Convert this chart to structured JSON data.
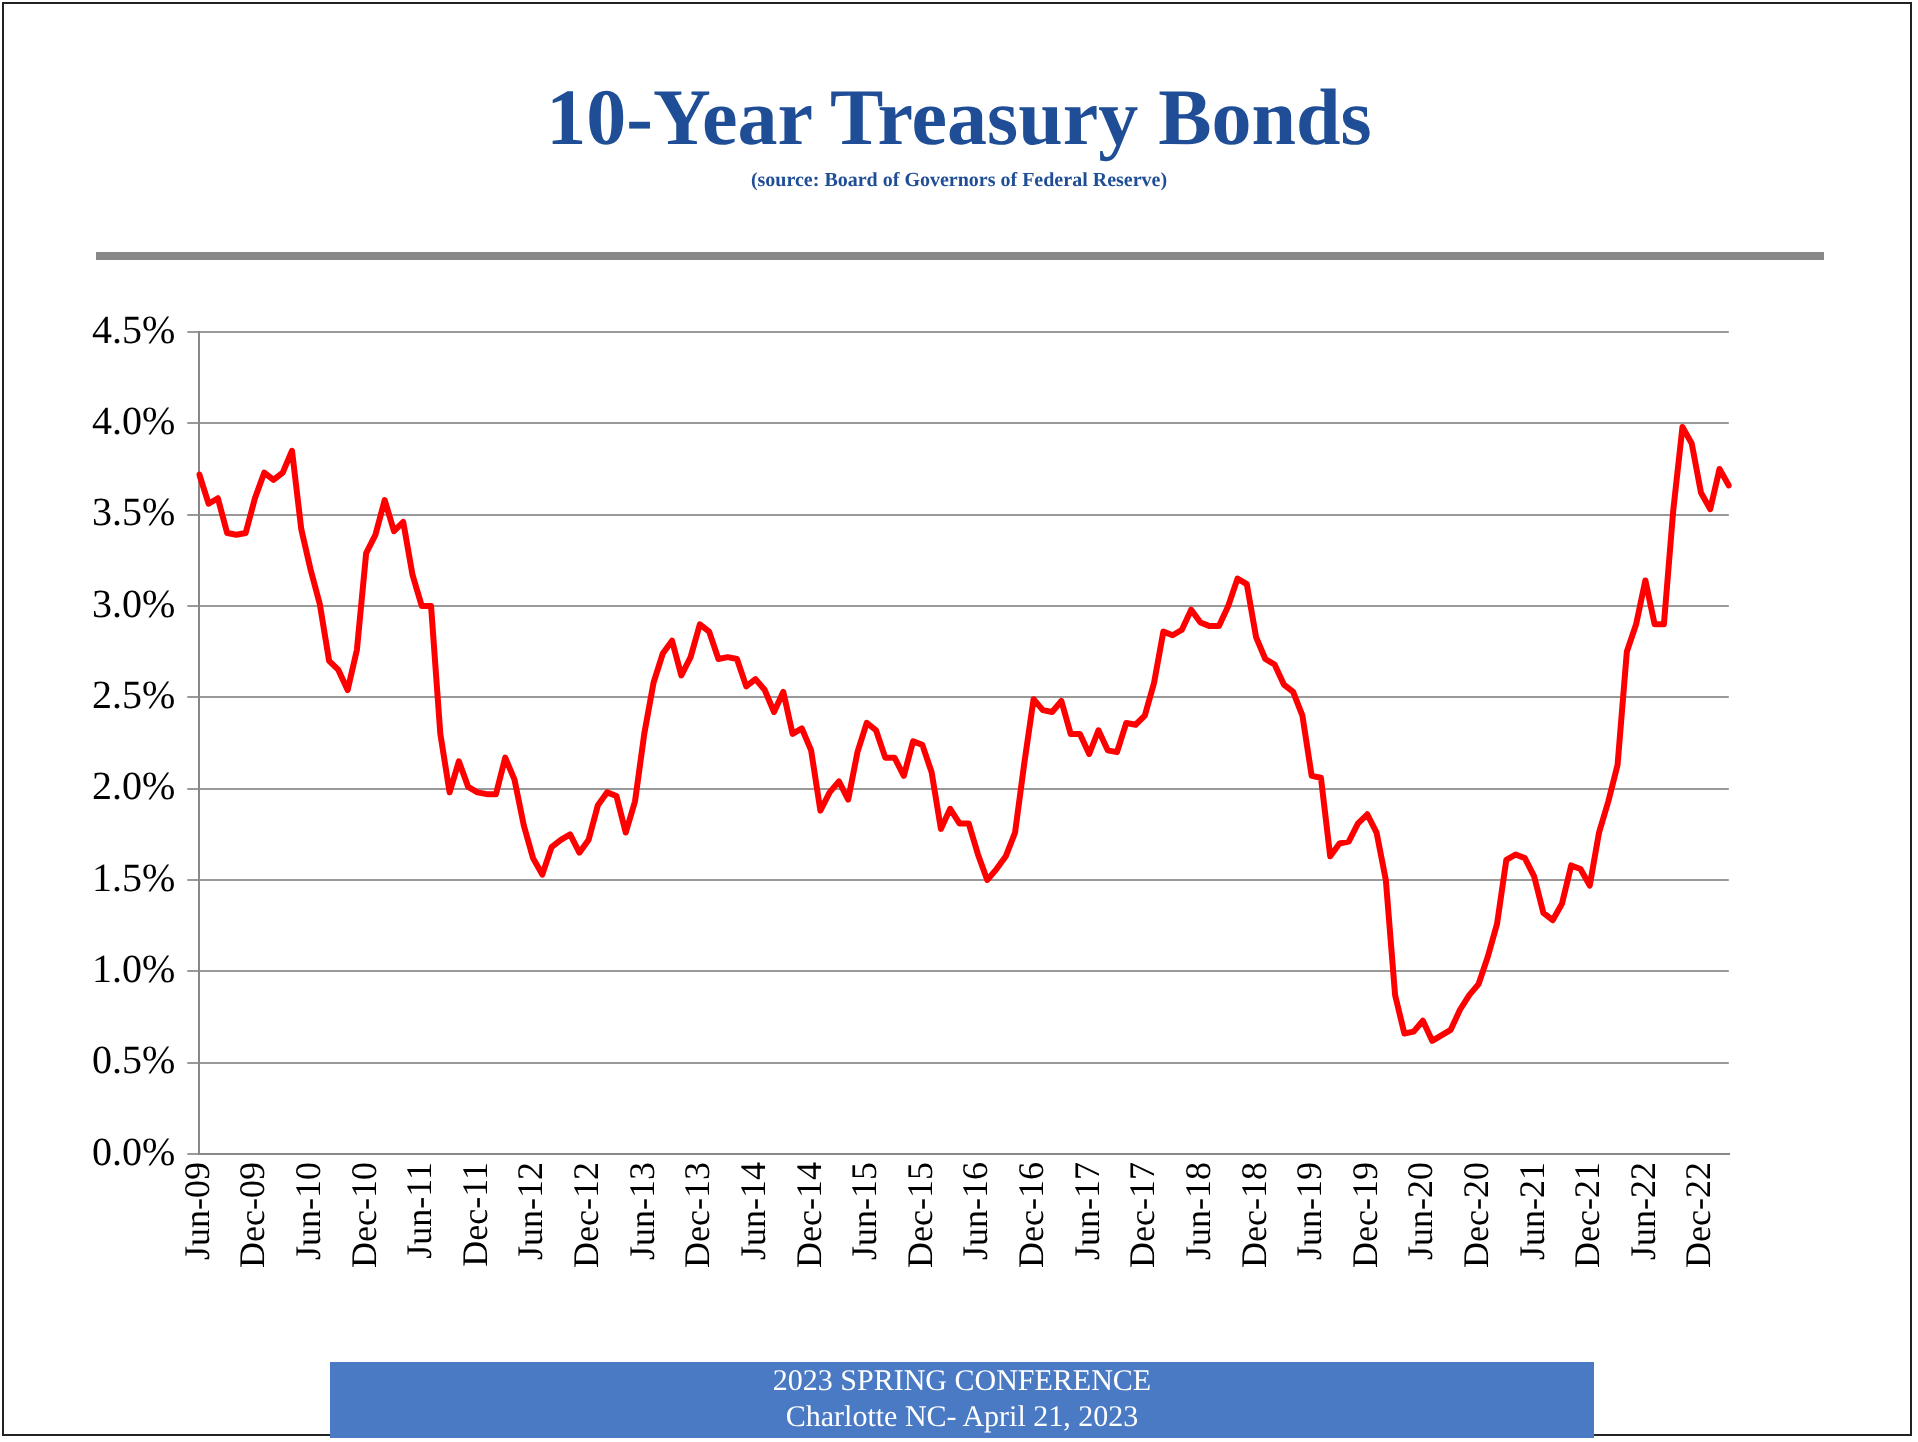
{
  "chart_data": {
    "type": "line",
    "title": "10-Year Treasury Bonds",
    "subtitle": "(source: Board of Governors of Federal Reserve)",
    "annotations": [
      "2023 SPRING CONFERENCE",
      "Charlotte NC- April 21, 2023"
    ],
    "categories": [
      "Jun-09",
      null,
      null,
      null,
      null,
      null,
      "Dec-09",
      null,
      null,
      null,
      null,
      null,
      "Jun-10",
      null,
      null,
      null,
      null,
      null,
      "Dec-10",
      null,
      null,
      null,
      null,
      null,
      "Jun-11",
      null,
      null,
      null,
      null,
      null,
      "Dec-11",
      null,
      null,
      null,
      null,
      null,
      "Jun-12",
      null,
      null,
      null,
      null,
      null,
      "Dec-12",
      null,
      null,
      null,
      null,
      null,
      "Jun-13",
      null,
      null,
      null,
      null,
      null,
      "Dec-13",
      null,
      null,
      null,
      null,
      null,
      "Jun-14",
      null,
      null,
      null,
      null,
      null,
      "Dec-14",
      null,
      null,
      null,
      null,
      null,
      "Jun-15",
      null,
      null,
      null,
      null,
      null,
      "Dec-15",
      null,
      null,
      null,
      null,
      null,
      "Jun-16",
      null,
      null,
      null,
      null,
      null,
      "Dec-16",
      null,
      null,
      null,
      null,
      null,
      "Jun-17",
      null,
      null,
      null,
      null,
      null,
      "Dec-17",
      null,
      null,
      null,
      null,
      null,
      "Jun-18",
      null,
      null,
      null,
      null,
      null,
      "Dec-18",
      null,
      null,
      null,
      null,
      null,
      "Jun-19",
      null,
      null,
      null,
      null,
      null,
      "Dec-19",
      null,
      null,
      null,
      null,
      null,
      "Jun-20",
      null,
      null,
      null,
      null,
      null,
      "Dec-20",
      null,
      null,
      null,
      null,
      null,
      "Jun-21",
      null,
      null,
      null,
      null,
      null,
      "Dec-21",
      null,
      null,
      null,
      null,
      null,
      "Jun-22",
      null,
      null,
      null,
      null,
      null,
      "Dec-22",
      null,
      null,
      null
    ],
    "series": [
      {
        "color": "#ff0000",
        "values": [
          3.72,
          3.56,
          3.59,
          3.4,
          3.39,
          3.4,
          3.59,
          3.73,
          3.69,
          3.73,
          3.85,
          3.42,
          3.2,
          3.01,
          2.7,
          2.65,
          2.54,
          2.76,
          3.29,
          3.39,
          3.58,
          3.41,
          3.46,
          3.17,
          3.0,
          3.0,
          2.3,
          1.98,
          2.15,
          2.01,
          1.98,
          1.97,
          1.97,
          2.17,
          2.05,
          1.8,
          1.62,
          1.53,
          1.68,
          1.72,
          1.75,
          1.65,
          1.72,
          1.91,
          1.98,
          1.96,
          1.76,
          1.93,
          2.3,
          2.58,
          2.74,
          2.81,
          2.62,
          2.72,
          2.9,
          2.86,
          2.71,
          2.72,
          2.71,
          2.56,
          2.6,
          2.54,
          2.42,
          2.53,
          2.3,
          2.33,
          2.21,
          1.88,
          1.98,
          2.04,
          1.94,
          2.2,
          2.36,
          2.32,
          2.17,
          2.17,
          2.07,
          2.26,
          2.24,
          2.09,
          1.78,
          1.89,
          1.81,
          1.81,
          1.64,
          1.5,
          1.56,
          1.63,
          1.76,
          2.14,
          2.49,
          2.43,
          2.42,
          2.48,
          2.3,
          2.3,
          2.19,
          2.32,
          2.21,
          2.2,
          2.36,
          2.35,
          2.4,
          2.58,
          2.86,
          2.84,
          2.87,
          2.98,
          2.91,
          2.89,
          2.89,
          3.0,
          3.15,
          3.12,
          2.83,
          2.71,
          2.68,
          2.57,
          2.53,
          2.4,
          2.07,
          2.06,
          1.63,
          1.7,
          1.71,
          1.81,
          1.86,
          1.76,
          1.5,
          0.87,
          0.66,
          0.67,
          0.73,
          0.62,
          0.65,
          0.68,
          0.79,
          0.87,
          0.93,
          1.08,
          1.26,
          1.61,
          1.64,
          1.62,
          1.52,
          1.32,
          1.28,
          1.37,
          1.58,
          1.56,
          1.47,
          1.76,
          1.93,
          2.13,
          2.75,
          2.9,
          3.14,
          2.9,
          2.9,
          3.52,
          3.98,
          3.89,
          3.62,
          3.53,
          3.75,
          3.66
        ]
      }
    ],
    "ylim": [
      0,
      4.5
    ],
    "yticks": [
      {
        "value": 0,
        "label": "0.0%"
      },
      {
        "value": 0.5,
        "label": "0.5%"
      },
      {
        "value": 1,
        "label": "1.0%"
      },
      {
        "value": 1.5,
        "label": "1.5%"
      },
      {
        "value": 2,
        "label": "2.0%"
      },
      {
        "value": 2.5,
        "label": "2.5%"
      },
      {
        "value": 3,
        "label": "3.0%"
      },
      {
        "value": 3.5,
        "label": "3.5%"
      },
      {
        "value": 4,
        "label": "4.0%"
      },
      {
        "value": 4.5,
        "label": "4.5%"
      }
    ],
    "grid": "y",
    "legend": false,
    "marker": "none",
    "line_style": "solid"
  }
}
